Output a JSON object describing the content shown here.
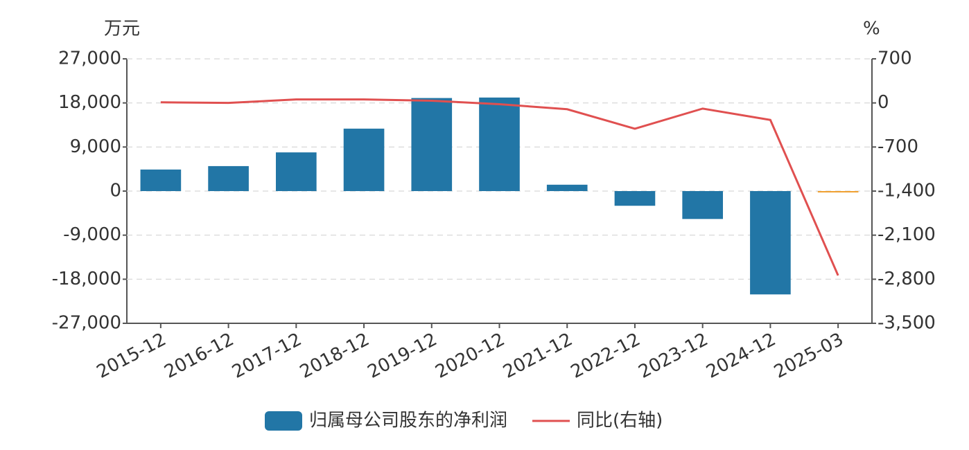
{
  "chart_data": {
    "type": "bar-line",
    "y_unit": "万元",
    "y2_unit": "%",
    "categories": [
      "2015-12",
      "2016-12",
      "2017-12",
      "2018-12",
      "2019-12",
      "2020-12",
      "2021-12",
      "2022-12",
      "2023-12",
      "2024-12",
      "2025-03"
    ],
    "series": [
      {
        "name": "归属母公司股东的净利润",
        "type": "bar",
        "color": "#2276a6",
        "colors": [
          "#2276a6",
          "#2276a6",
          "#2276a6",
          "#2276a6",
          "#2276a6",
          "#2276a6",
          "#2276a6",
          "#2276a6",
          "#2276a6",
          "#2276a6",
          "#f0a030"
        ],
        "values": [
          4400,
          5100,
          7900,
          12750,
          19000,
          19100,
          1300,
          -3000,
          -5700,
          -21100,
          -150
        ]
      },
      {
        "name": "同比(右轴)",
        "type": "line",
        "axis": "y2",
        "color": "#e05050",
        "values": [
          10,
          0,
          55,
          55,
          35,
          -20,
          -100,
          -410,
          -90,
          -270,
          -2740
        ]
      }
    ],
    "ylim": [
      -27000,
      27000
    ],
    "yticks": [
      {
        "value": -27000,
        "label": "-27,000"
      },
      {
        "value": -18000,
        "label": "-18,000"
      },
      {
        "value": -9000,
        "label": "-9,000"
      },
      0,
      {
        "value": 9000,
        "label": "9,000"
      },
      {
        "value": 18000,
        "label": "18,000"
      },
      {
        "value": 27000,
        "label": "27,000"
      }
    ],
    "y2lim": [
      -3500,
      700
    ],
    "y2ticks": [
      {
        "value": -3500,
        "label": "-3,500"
      },
      {
        "value": -2800,
        "label": "-2,800"
      },
      {
        "value": -2100,
        "label": "-2,100"
      },
      {
        "value": -1400,
        "label": "-1,400"
      },
      -700,
      0,
      700
    ],
    "grid": true
  }
}
